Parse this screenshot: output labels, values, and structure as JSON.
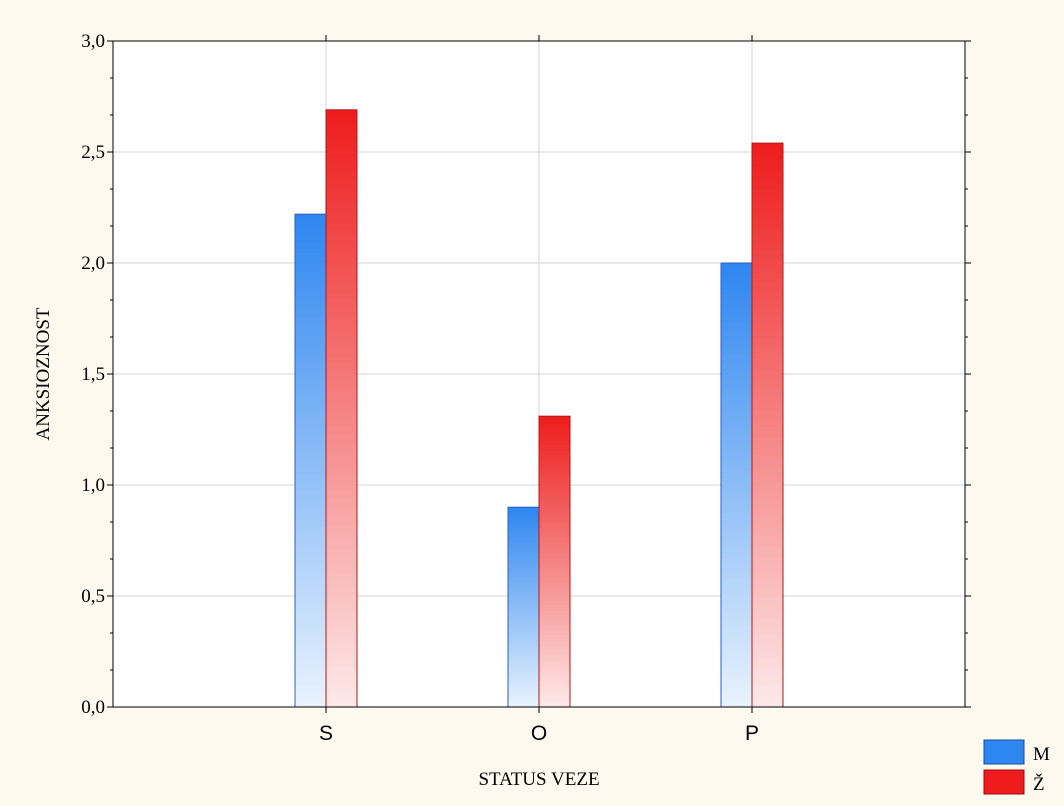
{
  "chart_data": {
    "type": "bar",
    "title": "",
    "xlabel": "STATUS VEZE",
    "ylabel": "ANKSIOZNOST",
    "categories": [
      "S",
      "O",
      "P"
    ],
    "series": [
      {
        "name": "M",
        "values": [
          2.22,
          0.9,
          2.0
        ],
        "color": "#2e86f0"
      },
      {
        "name": "Ž",
        "values": [
          2.69,
          1.31,
          2.54
        ],
        "color": "#ee1c1c"
      }
    ],
    "ylim": [
      0,
      3.0
    ],
    "yticks": [
      "0,0",
      "0,5",
      "1,0",
      "1,5",
      "2,0",
      "2,5",
      "3,0"
    ],
    "grid": true,
    "legend_position": "bottom-right"
  }
}
